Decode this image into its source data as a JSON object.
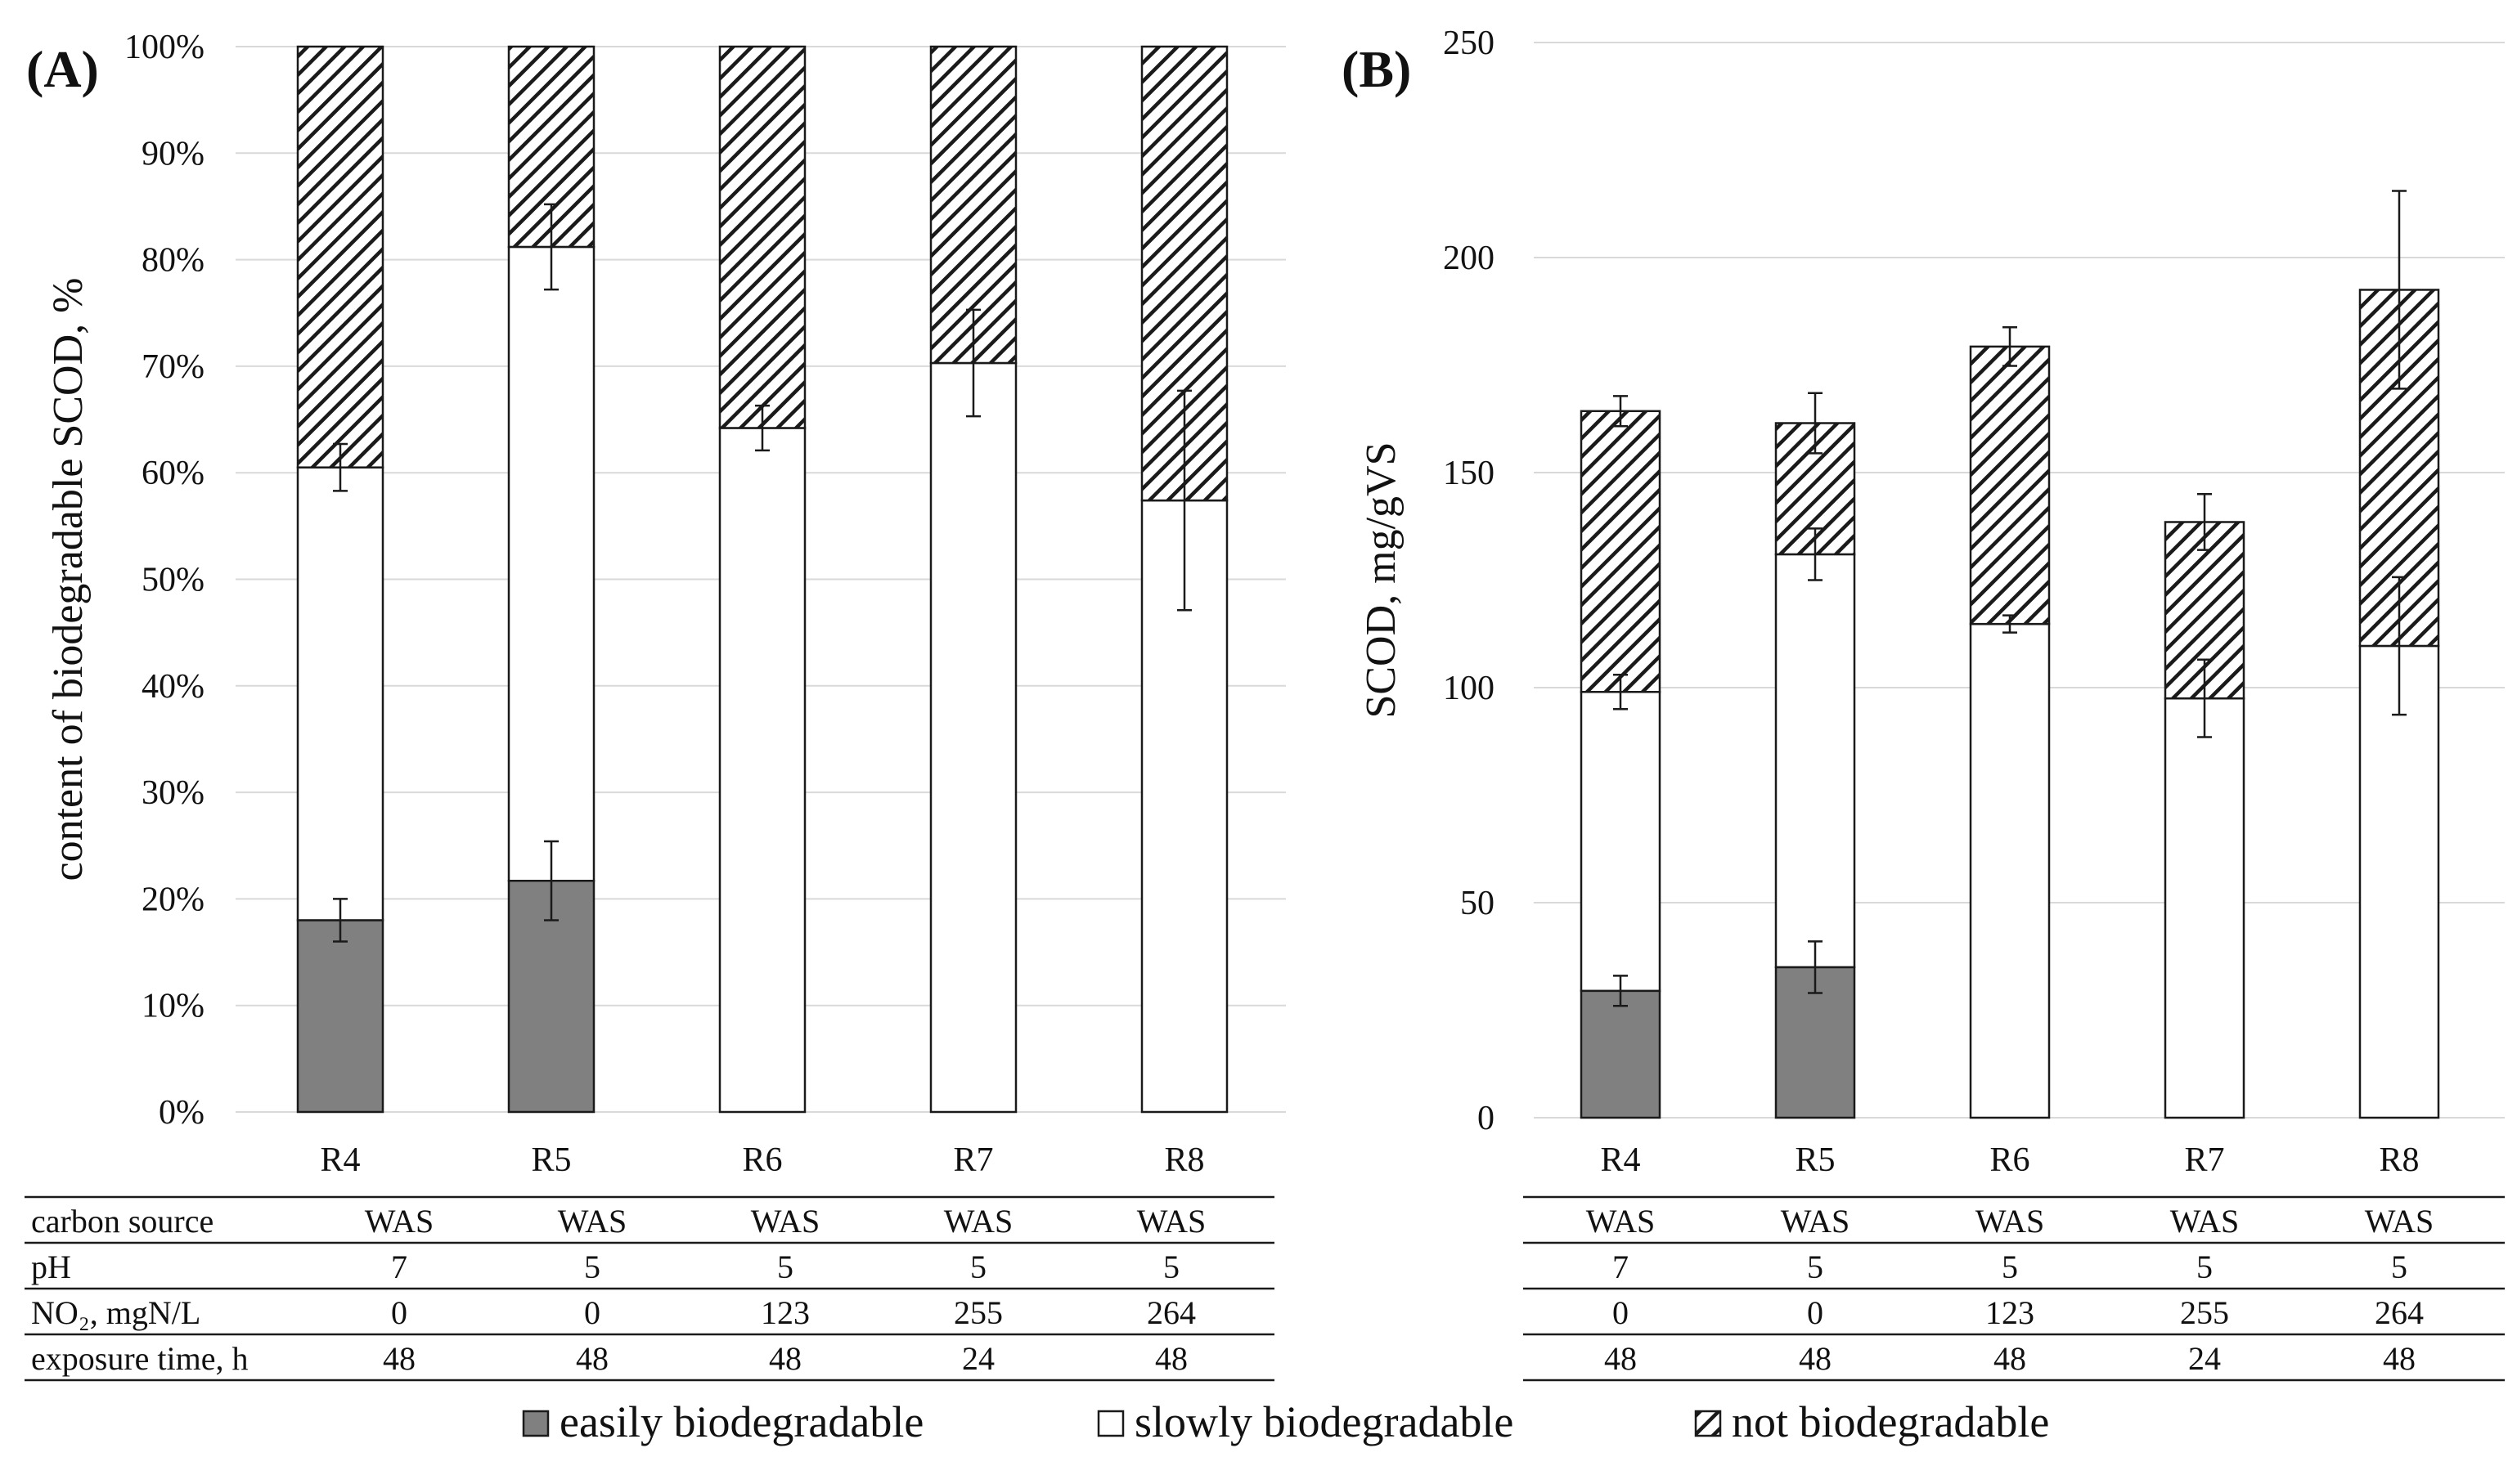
{
  "chart_data": [
    {
      "panel": "(A)",
      "type": "bar",
      "stacked": true,
      "categories": [
        "R4",
        "R5",
        "R6",
        "R7",
        "R8"
      ],
      "ylabel": "content of biodegradable SCOD, %",
      "ylim": [
        0,
        100
      ],
      "yticks": [
        "0%",
        "10%",
        "20%",
        "30%",
        "40%",
        "50%",
        "60%",
        "70%",
        "80%",
        "90%",
        "100%"
      ],
      "ytick_values": [
        0,
        10,
        20,
        30,
        40,
        50,
        60,
        70,
        80,
        90,
        100
      ],
      "grid": true,
      "series": [
        {
          "name": "easily biodegradable",
          "values": [
            18,
            21.7,
            0,
            0,
            0
          ],
          "errors": [
            2,
            3.7,
            null,
            null,
            null
          ]
        },
        {
          "name": "slowly biodegradable",
          "values": [
            42.5,
            59.5,
            64.2,
            70.3,
            57.4
          ],
          "errors": [
            2.2,
            4,
            2.1,
            5,
            10.3
          ]
        },
        {
          "name": "not biodegradable",
          "values": [
            39.5,
            18.8,
            35.8,
            29.7,
            42.6
          ],
          "errors": [
            null,
            null,
            null,
            null,
            null
          ]
        }
      ]
    },
    {
      "panel": "(B)",
      "type": "bar",
      "stacked": true,
      "categories": [
        "R4",
        "R5",
        "R6",
        "R7",
        "R8"
      ],
      "ylabel": "SCOD, mg/gVS",
      "ylim": [
        0,
        250
      ],
      "yticks": [
        "0",
        "50",
        "100",
        "150",
        "200",
        "250"
      ],
      "ytick_values": [
        0,
        50,
        100,
        150,
        200,
        250
      ],
      "grid": true,
      "series": [
        {
          "name": "easily biodegradable",
          "values": [
            29.5,
            35,
            0,
            0,
            0
          ],
          "errors": [
            3.5,
            6,
            null,
            null,
            null
          ]
        },
        {
          "name": "slowly biodegradable",
          "values": [
            69.5,
            96,
            114.8,
            97.5,
            109.7
          ],
          "errors": [
            4,
            6,
            2,
            9,
            16
          ]
        },
        {
          "name": "not biodegradable",
          "values": [
            65.3,
            30.5,
            64.5,
            41,
            82.8
          ],
          "errors": [
            3.5,
            7,
            4.5,
            6.5,
            23
          ]
        }
      ]
    }
  ],
  "table": {
    "row_labels": [
      "carbon source",
      "pH",
      "NO₂, mgN/L",
      "exposure time, h"
    ],
    "rows": [
      [
        "WAS",
        "WAS",
        "WAS",
        "WAS",
        "WAS"
      ],
      [
        "7",
        "5",
        "5",
        "5",
        "5"
      ],
      [
        "0",
        "0",
        "123",
        "255",
        "264"
      ],
      [
        "48",
        "48",
        "48",
        "24",
        "48"
      ]
    ]
  },
  "legend": [
    {
      "label": "easily biodegradable",
      "fill": "gray"
    },
    {
      "label": "slowly biodegradable",
      "fill": "white"
    },
    {
      "label": "not biodegradable",
      "fill": "hatch"
    }
  ],
  "colors": {
    "easily": "#808080",
    "slowly": "#ffffff",
    "stroke": "#1a1a1a",
    "grid": "#d9d9d9",
    "hatch": "#1a1a1a"
  }
}
